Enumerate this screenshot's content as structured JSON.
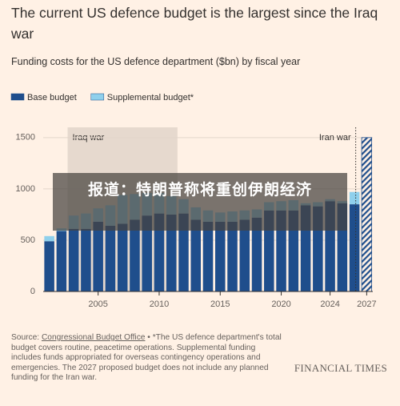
{
  "chart_data": {
    "type": "bar",
    "title": "The current US defence budget is the largest since the Iraq war",
    "subtitle": "Funding costs for the US defence department ($bn) by fiscal year",
    "x": [
      2001,
      2002,
      2003,
      2004,
      2005,
      2006,
      2007,
      2008,
      2009,
      2010,
      2011,
      2012,
      2013,
      2014,
      2015,
      2016,
      2017,
      2018,
      2019,
      2020,
      2021,
      2022,
      2023,
      2024,
      2025,
      2026,
      2027
    ],
    "series": [
      {
        "name": "Base budget",
        "color": "#1f4e8c",
        "values": [
          490,
          590,
          610,
          610,
          680,
          640,
          660,
          700,
          740,
          760,
          750,
          760,
          700,
          680,
          680,
          680,
          700,
          720,
          790,
          790,
          790,
          840,
          830,
          880,
          860,
          850,
          1500
        ]
      },
      {
        "name": "Supplemental budget*",
        "color": "#8fd0ec",
        "values": [
          50,
          25,
          130,
          150,
          130,
          200,
          280,
          250,
          220,
          200,
          180,
          140,
          120,
          110,
          90,
          100,
          90,
          80,
          80,
          90,
          100,
          20,
          40,
          20,
          20,
          120,
          null
        ]
      }
    ],
    "hatch_x": [
      2027
    ],
    "xlim": [
      2000.5,
      2027.5
    ],
    "xticks": [
      2005,
      2010,
      2015,
      2020,
      2024,
      2027
    ],
    "ylim": [
      0,
      1600
    ],
    "yticks": [
      0,
      500,
      1000,
      1500
    ],
    "grid": true,
    "shaded_spans": [
      {
        "label": "Iraq war",
        "start": 2002.5,
        "end": 2011.5
      }
    ],
    "markers": [
      {
        "label": "Iran war",
        "x": 2026.1
      }
    ],
    "source_label": "Source:",
    "source": "Congressional Budget Office",
    "note": "• *The US defence department's total budget covers routine, peacetime operations. Supplemental funding includes funds appropriated for overseas contingency operations and emergencies. The 2027 proposed budget does not include any planned funding for the Iran war.",
    "publisher": "FINANCIAL TIMES"
  },
  "overlay_caption": "报道：特朗普称将重创伊朗经济"
}
